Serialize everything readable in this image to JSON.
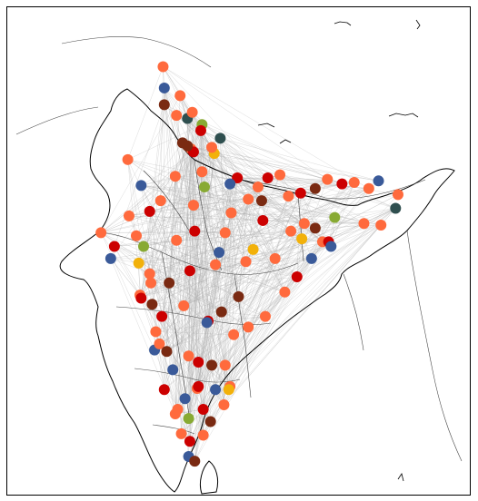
{
  "map": {
    "colors": {
      "edge": "#b0b0b0",
      "border": "#333333",
      "coast": "#000000",
      "categories": [
        "#ff6a3d",
        "#cc0000",
        "#7a2a12",
        "#3a5a99",
        "#f2b10a",
        "#88aa33",
        "#2f4f4f"
      ]
    },
    "nodes": [
      {
        "lon": 77.1,
        "lat": 28.7,
        "cat": 0
      },
      {
        "lon": 77.3,
        "lat": 28.5,
        "cat": 1
      },
      {
        "lon": 76.8,
        "lat": 28.9,
        "cat": 2
      },
      {
        "lon": 75.8,
        "lat": 26.9,
        "cat": 0
      },
      {
        "lon": 75.9,
        "lat": 30.9,
        "cat": 0
      },
      {
        "lon": 74.9,
        "lat": 31.6,
        "cat": 2
      },
      {
        "lon": 74.8,
        "lat": 34.1,
        "cat": 0
      },
      {
        "lon": 74.9,
        "lat": 32.7,
        "cat": 3
      },
      {
        "lon": 76.8,
        "lat": 30.7,
        "cat": 6
      },
      {
        "lon": 77.2,
        "lat": 31.1,
        "cat": 0
      },
      {
        "lon": 78.0,
        "lat": 30.3,
        "cat": 5
      },
      {
        "lon": 79.5,
        "lat": 29.4,
        "cat": 6
      },
      {
        "lon": 78.0,
        "lat": 27.2,
        "cat": 0
      },
      {
        "lon": 80.9,
        "lat": 26.8,
        "cat": 1
      },
      {
        "lon": 82.9,
        "lat": 25.3,
        "cat": 2
      },
      {
        "lon": 81.8,
        "lat": 25.4,
        "cat": 0
      },
      {
        "lon": 80.3,
        "lat": 26.4,
        "cat": 3
      },
      {
        "lon": 79.0,
        "lat": 28.4,
        "cat": 4
      },
      {
        "lon": 85.1,
        "lat": 25.6,
        "cat": 0
      },
      {
        "lon": 86.1,
        "lat": 25.8,
        "cat": 1
      },
      {
        "lon": 87.9,
        "lat": 22.6,
        "cat": 0
      },
      {
        "lon": 88.4,
        "lat": 22.6,
        "cat": 1
      },
      {
        "lon": 88.6,
        "lat": 22.3,
        "cat": 3
      },
      {
        "lon": 87.3,
        "lat": 23.5,
        "cat": 2
      },
      {
        "lon": 86.2,
        "lat": 22.8,
        "cat": 4
      },
      {
        "lon": 85.3,
        "lat": 23.3,
        "cat": 0
      },
      {
        "lon": 85.8,
        "lat": 20.3,
        "cat": 1
      },
      {
        "lon": 84.0,
        "lat": 21.5,
        "cat": 0
      },
      {
        "lon": 81.6,
        "lat": 21.3,
        "cat": 0
      },
      {
        "lon": 82.2,
        "lat": 22.1,
        "cat": 4
      },
      {
        "lon": 91.7,
        "lat": 26.1,
        "cat": 0
      },
      {
        "lon": 93.9,
        "lat": 24.8,
        "cat": 6
      },
      {
        "lon": 94.1,
        "lat": 25.7,
        "cat": 0
      },
      {
        "lon": 92.7,
        "lat": 23.7,
        "cat": 0
      },
      {
        "lon": 91.3,
        "lat": 23.8,
        "cat": 0
      },
      {
        "lon": 88.3,
        "lat": 26.7,
        "cat": 0
      },
      {
        "lon": 89.5,
        "lat": 26.4,
        "cat": 1
      },
      {
        "lon": 90.5,
        "lat": 26.5,
        "cat": 0
      },
      {
        "lon": 92.5,
        "lat": 26.6,
        "cat": 3
      },
      {
        "lon": 72.9,
        "lat": 19.1,
        "cat": 0
      },
      {
        "lon": 73.0,
        "lat": 18.9,
        "cat": 1
      },
      {
        "lon": 73.9,
        "lat": 18.5,
        "cat": 2
      },
      {
        "lon": 73.8,
        "lat": 19.9,
        "cat": 0
      },
      {
        "lon": 72.6,
        "lat": 23.0,
        "cat": 0
      },
      {
        "lon": 72.8,
        "lat": 21.2,
        "cat": 4
      },
      {
        "lon": 73.2,
        "lat": 22.3,
        "cat": 5
      },
      {
        "lon": 70.8,
        "lat": 22.3,
        "cat": 1
      },
      {
        "lon": 69.7,
        "lat": 23.2,
        "cat": 0
      },
      {
        "lon": 70.5,
        "lat": 21.5,
        "cat": 3
      },
      {
        "lon": 75.9,
        "lat": 22.7,
        "cat": 0
      },
      {
        "lon": 77.4,
        "lat": 23.3,
        "cat": 1
      },
      {
        "lon": 79.9,
        "lat": 23.2,
        "cat": 0
      },
      {
        "lon": 78.2,
        "lat": 26.2,
        "cat": 5
      },
      {
        "lon": 79.1,
        "lat": 21.1,
        "cat": 0
      },
      {
        "lon": 75.3,
        "lat": 19.9,
        "cat": 2
      },
      {
        "lon": 76.5,
        "lat": 18.4,
        "cat": 0
      },
      {
        "lon": 78.5,
        "lat": 17.4,
        "cat": 1
      },
      {
        "lon": 78.4,
        "lat": 17.3,
        "cat": 3
      },
      {
        "lon": 79.6,
        "lat": 18.0,
        "cat": 2
      },
      {
        "lon": 80.6,
        "lat": 16.5,
        "cat": 0
      },
      {
        "lon": 83.2,
        "lat": 17.7,
        "cat": 0
      },
      {
        "lon": 81.8,
        "lat": 17.0,
        "cat": 0
      },
      {
        "lon": 74.1,
        "lat": 15.5,
        "cat": 3
      },
      {
        "lon": 74.5,
        "lat": 15.9,
        "cat": 0
      },
      {
        "lon": 75.1,
        "lat": 15.4,
        "cat": 2
      },
      {
        "lon": 76.9,
        "lat": 15.1,
        "cat": 0
      },
      {
        "lon": 77.6,
        "lat": 12.97,
        "cat": 0
      },
      {
        "lon": 77.7,
        "lat": 13.1,
        "cat": 1
      },
      {
        "lon": 76.6,
        "lat": 12.3,
        "cat": 3
      },
      {
        "lon": 74.9,
        "lat": 12.9,
        "cat": 1
      },
      {
        "lon": 80.3,
        "lat": 13.1,
        "cat": 0
      },
      {
        "lon": 80.2,
        "lat": 12.9,
        "cat": 4
      },
      {
        "lon": 79.8,
        "lat": 11.9,
        "cat": 0
      },
      {
        "lon": 78.7,
        "lat": 10.8,
        "cat": 2
      },
      {
        "lon": 78.1,
        "lat": 9.9,
        "cat": 0
      },
      {
        "lon": 76.9,
        "lat": 11.0,
        "cat": 5
      },
      {
        "lon": 76.3,
        "lat": 10.0,
        "cat": 0
      },
      {
        "lon": 76.9,
        "lat": 8.5,
        "cat": 3
      },
      {
        "lon": 77.4,
        "lat": 8.2,
        "cat": 2
      },
      {
        "lon": 75.8,
        "lat": 11.3,
        "cat": 0
      },
      {
        "lon": 78.1,
        "lat": 11.6,
        "cat": 1
      },
      {
        "lon": 77.3,
        "lat": 25.0,
        "cat": 0
      },
      {
        "lon": 74.6,
        "lat": 25.3,
        "cat": 0
      },
      {
        "lon": 73.0,
        "lat": 26.3,
        "cat": 3
      },
      {
        "lon": 71.9,
        "lat": 28.0,
        "cat": 0
      },
      {
        "lon": 73.7,
        "lat": 24.6,
        "cat": 1
      },
      {
        "lon": 76.4,
        "lat": 29.1,
        "cat": 2
      },
      {
        "lon": 80.4,
        "lat": 24.5,
        "cat": 0
      },
      {
        "lon": 83.0,
        "lat": 24.0,
        "cat": 1
      },
      {
        "lon": 84.4,
        "lat": 27.0,
        "cat": 0
      },
      {
        "lon": 79.4,
        "lat": 21.9,
        "cat": 3
      },
      {
        "lon": 81.0,
        "lat": 19.0,
        "cat": 2
      },
      {
        "lon": 74.2,
        "lat": 16.7,
        "cat": 0
      },
      {
        "lon": 77.0,
        "lat": 20.7,
        "cat": 1
      },
      {
        "lon": 79.9,
        "lat": 14.5,
        "cat": 0
      },
      {
        "lon": 78.8,
        "lat": 14.5,
        "cat": 2
      },
      {
        "lon": 75.6,
        "lat": 14.2,
        "cat": 3
      },
      {
        "lon": 77.7,
        "lat": 14.7,
        "cat": 1
      },
      {
        "lon": 76.2,
        "lat": 32.2,
        "cat": 0
      },
      {
        "lon": 77.9,
        "lat": 29.9,
        "cat": 1
      },
      {
        "lon": 78.8,
        "lat": 28.8,
        "cat": 0
      },
      {
        "lon": 82.6,
        "lat": 26.2,
        "cat": 0
      },
      {
        "lon": 83.4,
        "lat": 26.8,
        "cat": 1
      },
      {
        "lon": 86.4,
        "lat": 23.8,
        "cat": 0
      },
      {
        "lon": 87.0,
        "lat": 21.5,
        "cat": 3
      },
      {
        "lon": 84.8,
        "lat": 19.3,
        "cat": 0
      },
      {
        "lon": 88.9,
        "lat": 24.2,
        "cat": 5
      },
      {
        "lon": 87.3,
        "lat": 26.1,
        "cat": 2
      },
      {
        "lon": 72.0,
        "lat": 24.3,
        "cat": 0
      },
      {
        "lon": 73.7,
        "lat": 20.5,
        "cat": 0
      },
      {
        "lon": 74.7,
        "lat": 17.7,
        "cat": 1
      },
      {
        "lon": 76.0,
        "lat": 11.6,
        "cat": 0
      },
      {
        "lon": 77.0,
        "lat": 9.5,
        "cat": 1
      },
      {
        "lon": 79.1,
        "lat": 12.9,
        "cat": 3
      }
    ]
  }
}
